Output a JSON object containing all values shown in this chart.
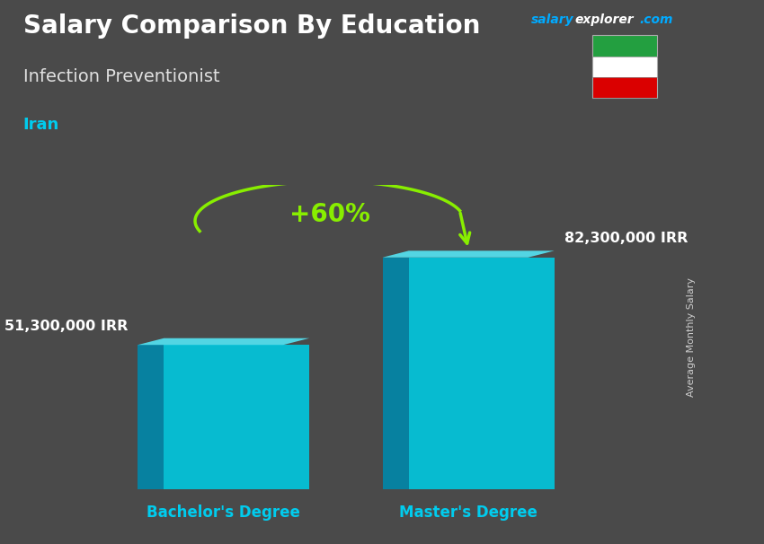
{
  "title": "Salary Comparison By Education",
  "subtitle": "Infection Preventionist",
  "country": "Iran",
  "site_salary": "salary",
  "site_explorer": "explorer",
  "site_com": ".com",
  "categories": [
    "Bachelor's Degree",
    "Master's Degree"
  ],
  "values": [
    51300000,
    82300000
  ],
  "value_labels": [
    "51,300,000 IRR",
    "82,300,000 IRR"
  ],
  "pct_change": "+60%",
  "ylabel_text": "Average Monthly Salary",
  "bar_color_face": "#00c8e0",
  "bar_color_side": "#0088aa",
  "bar_color_top_light": "#55eeff",
  "bg_color": "#4a4a4a",
  "title_color": "#ffffff",
  "subtitle_color": "#e0e0e0",
  "country_color": "#00ccee",
  "value_color": "#ffffff",
  "xlabel_color": "#00ccee",
  "pct_color": "#88ee00",
  "ylabel_color": "#cccccc",
  "site_salary_color": "#00aaff",
  "site_explorer_color": "#ffffff",
  "site_com_color": "#00aaff",
  "flag_green": "#239f40",
  "flag_white": "#ffffff",
  "flag_red": "#da0000",
  "bar_positions": [
    0.35,
    0.72
  ],
  "bar_width": 0.22,
  "xlim": [
    0.05,
    1.02
  ],
  "ylim_max": 108000000
}
